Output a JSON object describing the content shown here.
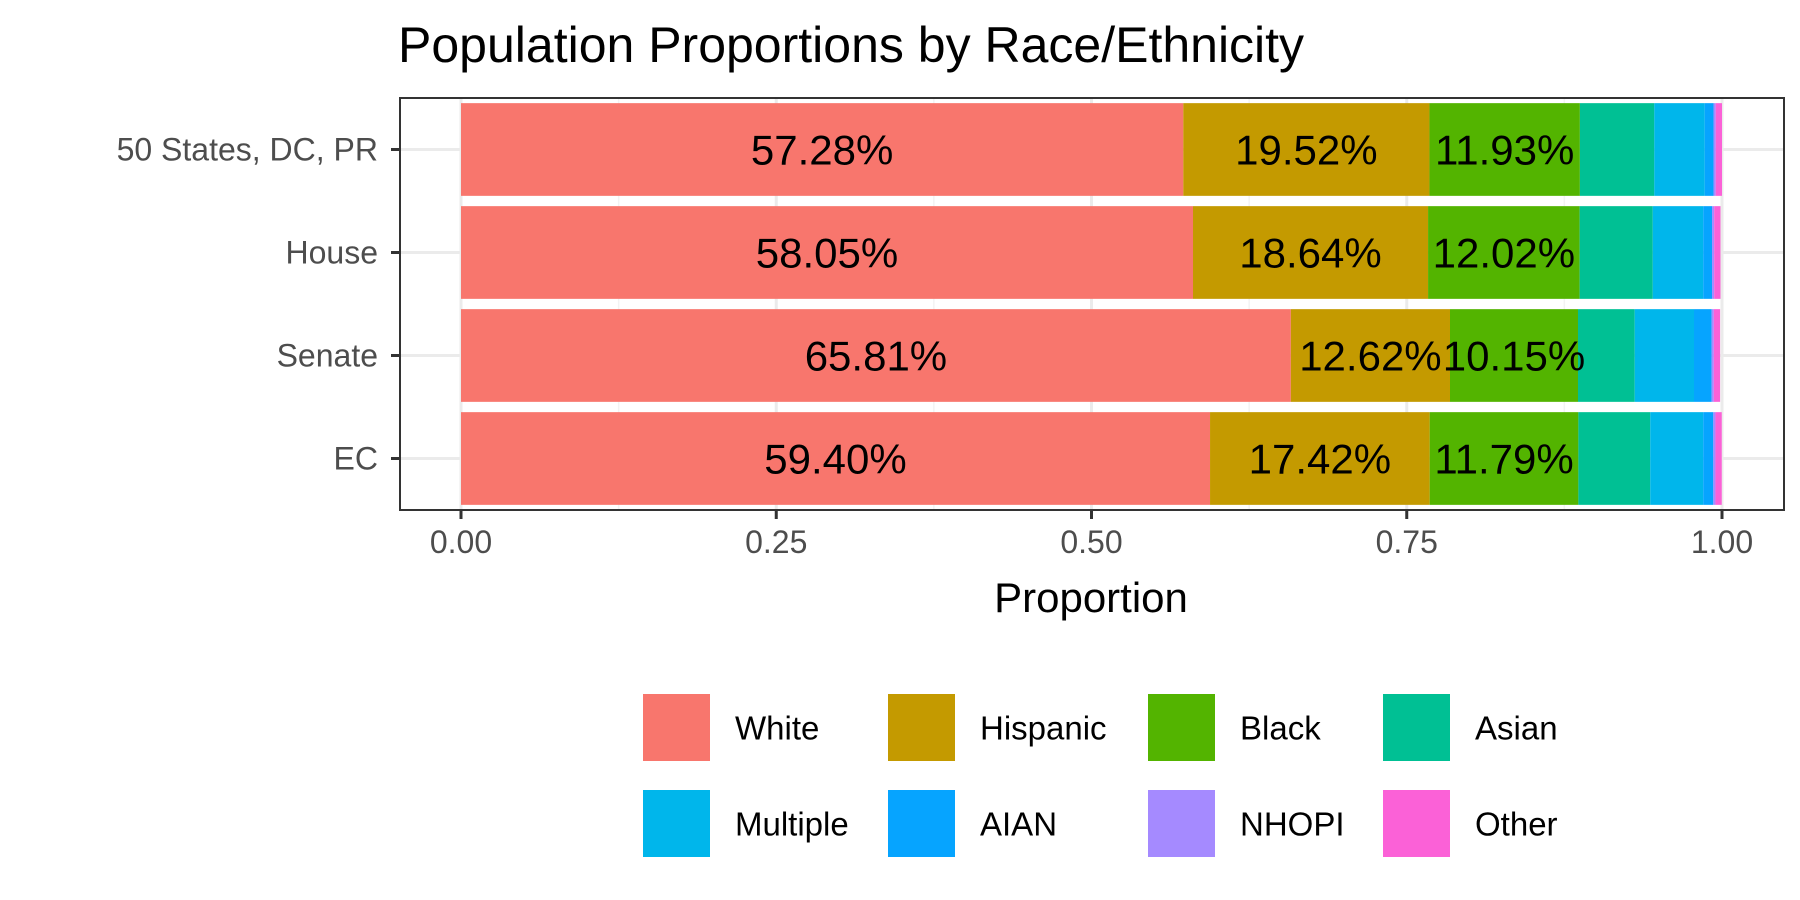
{
  "chart_data": {
    "type": "bar",
    "orientation": "horizontal",
    "stacked": true,
    "title": "Population Proportions by Race/Ethnicity",
    "xlabel": "Proportion",
    "ylabel": "",
    "xlim": [
      0,
      1
    ],
    "x_ticks": [
      "0.00",
      "0.25",
      "0.50",
      "0.75",
      "1.00"
    ],
    "x_tick_values": [
      0,
      0.25,
      0.5,
      0.75,
      1.0
    ],
    "grid": true,
    "legend_position": "bottom",
    "categories": [
      "50 States, DC, PR",
      "House",
      "Senate",
      "EC"
    ],
    "series": [
      {
        "name": "White",
        "color": "#F8766D",
        "values": [
          0.5728,
          0.5805,
          0.6581,
          0.594
        ],
        "labels": [
          "57.28%",
          "58.05%",
          "65.81%",
          "59.40%"
        ]
      },
      {
        "name": "Hispanic",
        "color": "#C49A00",
        "values": [
          0.1952,
          0.1864,
          0.1262,
          0.1742
        ],
        "labels": [
          "19.52%",
          "18.64%",
          "12.62%",
          "17.42%"
        ]
      },
      {
        "name": "Black",
        "color": "#53B400",
        "values": [
          0.1193,
          0.1202,
          0.1015,
          0.1179
        ],
        "labels": [
          "11.93%",
          "12.02%",
          "10.15%",
          "11.79%"
        ]
      },
      {
        "name": "Asian",
        "color": "#00C094",
        "values": [
          0.059,
          0.058,
          0.045,
          0.057
        ],
        "labels": [
          "",
          "",
          "",
          ""
        ]
      },
      {
        "name": "Multiple",
        "color": "#00B6EB",
        "values": [
          0.04,
          0.04,
          0.047,
          0.042
        ],
        "labels": [
          "",
          "",
          "",
          ""
        ]
      },
      {
        "name": "AIAN",
        "color": "#06A4FF",
        "values": [
          0.007,
          0.007,
          0.014,
          0.008
        ],
        "labels": [
          "",
          "",
          "",
          ""
        ]
      },
      {
        "name": "NHOPI",
        "color": "#A58AFF",
        "values": [
          0.0017,
          0.0017,
          0.0017,
          0.0017
        ],
        "labels": [
          "",
          "",
          "",
          ""
        ]
      },
      {
        "name": "Other",
        "color": "#FB61D7",
        "values": [
          0.005,
          0.005,
          0.005,
          0.005
        ],
        "labels": [
          "",
          "",
          "",
          ""
        ]
      }
    ]
  }
}
